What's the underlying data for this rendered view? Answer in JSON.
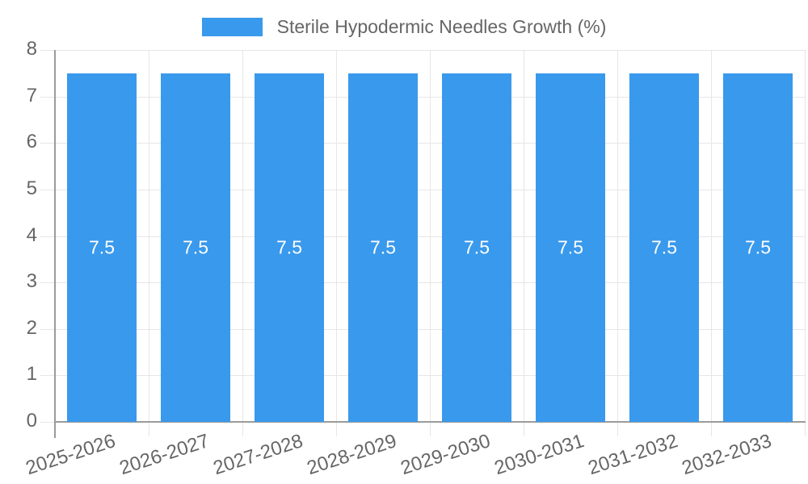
{
  "chart_data": {
    "type": "bar",
    "title": "",
    "legend": {
      "label": "Sterile Hypodermic Needles Growth (%)",
      "position": "top"
    },
    "categories": [
      "2025-2026",
      "2026-2027",
      "2027-2028",
      "2028-2029",
      "2029-2030",
      "2030-2031",
      "2031-2032",
      "2032-2033"
    ],
    "series": [
      {
        "name": "Sterile Hypodermic Needles Growth (%)",
        "values": [
          7.5,
          7.5,
          7.5,
          7.5,
          7.5,
          7.5,
          7.5,
          7.5
        ]
      }
    ],
    "bar_labels": [
      "7.5",
      "7.5",
      "7.5",
      "7.5",
      "7.5",
      "7.5",
      "7.5",
      "7.5"
    ],
    "xlabel": "",
    "ylabel": "",
    "ylim": [
      0,
      8
    ],
    "yticks": [
      "0",
      "1",
      "2",
      "3",
      "4",
      "5",
      "6",
      "7",
      "8"
    ],
    "grid": true,
    "colors": {
      "bar": "#3999EC",
      "axis_text": "#666666",
      "grid_line": "#E6E6E6",
      "axis_line": "#9B9B9B",
      "bar_label": "#FFFFFF",
      "background": "#FFFFFF"
    }
  }
}
